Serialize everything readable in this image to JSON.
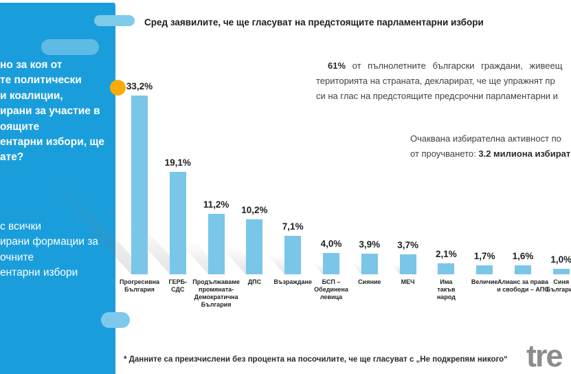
{
  "title": "Сред заявилите, че ще гласуват на предстоящите парламентарни избори",
  "sidebar": {
    "question_lines": [
      "но за коя от",
      "те политически",
      "и коалиции,",
      "ирани за участие в",
      "оящите",
      "ентарни избори, ще",
      "ате?"
    ],
    "note_lines": [
      "с всички",
      "ирани формации за",
      "очните",
      "ентарни избори"
    ]
  },
  "info1": {
    "line1_bold": "61%",
    "line1_rest": " от пълнолетните български граждани, живеещ",
    "line2": "територията на страната, декларират, че ще упражнят пр",
    "line3": "си на глас на предстоящите предсрочни парламентарни и"
  },
  "info2": {
    "line1": "Очаквана избирателна активност по",
    "line2_prefix": "от проучването: ",
    "line2_bold": "3.2 милиона избират"
  },
  "footnote": "* Данните са преизчислени без процента на посочилите, че ще гласуват с „Не подкрепям никого“",
  "logo_text": "tre",
  "colors": {
    "sidebar_blue": "#1A9EDB",
    "bar_blue": "#7AC6E8",
    "accent_orange": "#F8AB0C",
    "logo_gray": "#8C8C8C"
  },
  "chart_data": {
    "type": "bar",
    "title": "Сред заявилите, че ще гласуват на предстоящите парламентарни избори",
    "unit": "%",
    "categories": [
      "Прогресивна\nБългария",
      "ГЕРБ-\nСДС",
      "Продължаваме\nпромяната-\nДемократична\nБългария",
      "ДПС",
      "Възраждане",
      "БСП –\nОбединена\nлевица",
      "Сияние",
      "МЕЧ",
      "Има\nтакъв\nнарод",
      "Величие",
      "Алианс за права\nи свободи – АПС",
      "Синя\nБългария"
    ],
    "values": [
      33.2,
      19.1,
      11.2,
      10.2,
      7.1,
      4.0,
      3.9,
      3.7,
      2.1,
      1.7,
      1.6,
      1.0
    ],
    "value_labels": [
      "33,2%",
      "19,1%",
      "11,2%",
      "10,2%",
      "7,1%",
      "4,0%",
      "3,9%",
      "3,7%",
      "2,1%",
      "1,7%",
      "1,6%",
      "1,0%"
    ],
    "bar_color": "#7AC6E8",
    "ylim": [
      0,
      35
    ],
    "grid": false,
    "legend": false
  }
}
